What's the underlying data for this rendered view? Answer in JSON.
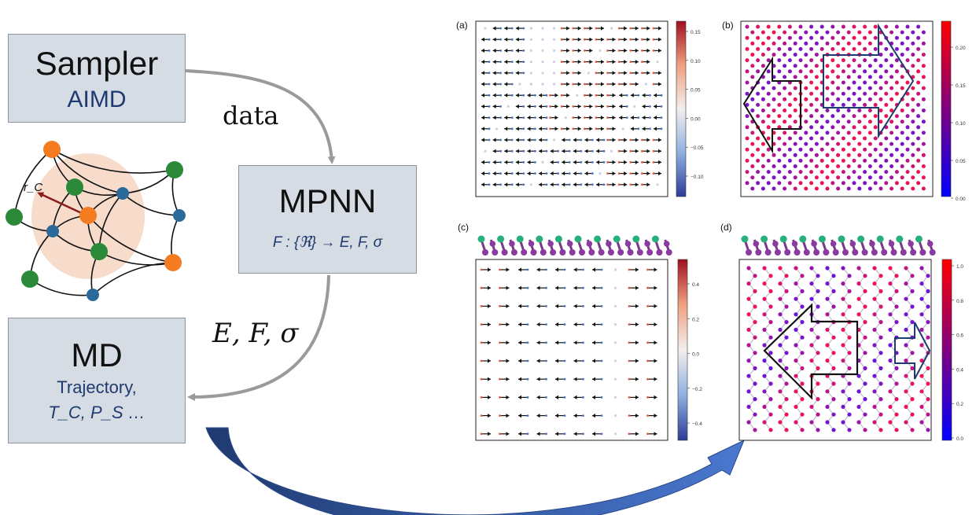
{
  "boxes": {
    "sampler": {
      "title": "Sampler",
      "subtitle": "AIMD"
    },
    "mpnn": {
      "title": "MPNN",
      "formula": "F : {ℜ} → E, F, σ"
    },
    "md": {
      "title": "MD",
      "subtitle_line1": "Trajectory,",
      "subtitle_line2": "T_C, P_S …"
    }
  },
  "arrow_labels": {
    "data": "data",
    "efs": "E, F, σ"
  },
  "graph": {
    "cutoff_label": "r_C"
  },
  "panels": {
    "a": {
      "tag": "(a)",
      "colorbar_ticks": [
        "0.15",
        "0.10",
        "0.05",
        "0.00",
        "−0.05",
        "−0.10"
      ]
    },
    "b": {
      "tag": "(b)",
      "colorbar_ticks": [
        "0.20",
        "0.15",
        "0.10",
        "0.05",
        "0.00"
      ]
    },
    "c": {
      "tag": "(c)",
      "colorbar_ticks": [
        "0.4",
        "0.2",
        "0.0",
        "−0.2",
        "−0.4"
      ]
    },
    "d": {
      "tag": "(d)",
      "colorbar_ticks": [
        "1.0",
        "0.8",
        "0.6",
        "0.4",
        "0.2",
        "0.0"
      ]
    }
  },
  "colors": {
    "box_fill": "#d6dce4",
    "accent_blue": "#1f3a70",
    "flow_arrow": "#3a62b0",
    "gray_arrow": "#9a9a9a"
  }
}
